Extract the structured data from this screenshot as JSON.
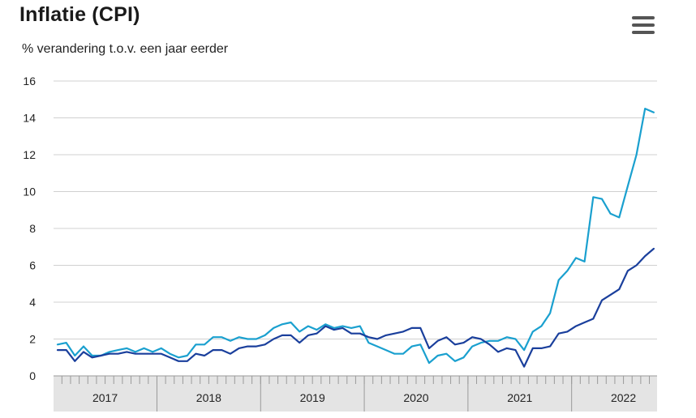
{
  "header": {
    "title": "Inflatie (CPI)",
    "subtitle": "% verandering t.o.v. een jaar eerder"
  },
  "menu": {
    "icon": "hamburger-menu-icon"
  },
  "colors": {
    "series_light": "#1aa0cf",
    "series_dark": "#1a3f9c",
    "grid": "#d0d0d0",
    "axis_band": "#e4e4e4"
  },
  "chart_data": {
    "type": "line",
    "ylim": [
      0,
      16
    ],
    "yticks": [
      "0",
      "2",
      "4",
      "6",
      "8",
      "10",
      "12",
      "14",
      "16"
    ],
    "xticks": [
      "2017",
      "2018",
      "2019",
      "2020",
      "2021",
      "2022"
    ],
    "grid": true,
    "x_start": "2017-01",
    "x_end": "2022-10",
    "series": [
      {
        "color": "#1aa0cf",
        "values": [
          1.7,
          1.8,
          1.1,
          1.6,
          1.1,
          1.1,
          1.3,
          1.4,
          1.5,
          1.3,
          1.5,
          1.3,
          1.5,
          1.2,
          1.0,
          1.1,
          1.7,
          1.7,
          2.1,
          2.1,
          1.9,
          2.1,
          2.0,
          2.0,
          2.2,
          2.6,
          2.8,
          2.9,
          2.4,
          2.7,
          2.5,
          2.8,
          2.6,
          2.7,
          2.6,
          2.7,
          1.8,
          1.6,
          1.4,
          1.2,
          1.2,
          1.6,
          1.7,
          0.7,
          1.1,
          1.2,
          0.8,
          1.0,
          1.6,
          1.8,
          1.9,
          1.9,
          2.1,
          2.0,
          1.4,
          2.4,
          2.7,
          3.4,
          5.2,
          5.7,
          6.4,
          6.2,
          9.7,
          9.6,
          8.8,
          8.6,
          10.3,
          12.0,
          14.5,
          14.3
        ]
      },
      {
        "color": "#1a3f9c",
        "values": [
          1.4,
          1.4,
          0.8,
          1.3,
          1.0,
          1.1,
          1.2,
          1.2,
          1.3,
          1.2,
          1.2,
          1.2,
          1.2,
          1.0,
          0.8,
          0.8,
          1.2,
          1.1,
          1.4,
          1.4,
          1.2,
          1.5,
          1.6,
          1.6,
          1.7,
          2.0,
          2.2,
          2.2,
          1.8,
          2.2,
          2.3,
          2.7,
          2.5,
          2.6,
          2.3,
          2.3,
          2.1,
          2.0,
          2.2,
          2.3,
          2.4,
          2.6,
          2.6,
          1.5,
          1.9,
          2.1,
          1.7,
          1.8,
          2.1,
          2.0,
          1.7,
          1.3,
          1.5,
          1.4,
          0.5,
          1.5,
          1.5,
          1.6,
          2.3,
          2.4,
          2.7,
          2.9,
          3.1,
          4.1,
          4.4,
          4.7,
          5.7,
          6.0,
          6.5,
          6.9
        ]
      }
    ]
  }
}
